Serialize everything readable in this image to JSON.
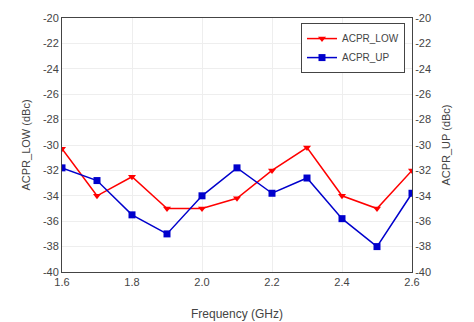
{
  "chart_data": {
    "type": "line",
    "x": [
      1.6,
      1.7,
      1.8,
      1.9,
      2.0,
      2.1,
      2.2,
      2.3,
      2.4,
      2.5,
      2.6
    ],
    "series": [
      {
        "name": "ACPR_LOW",
        "color": "#ff0000",
        "marker": "triangle-down",
        "line_style": "solid",
        "values": [
          -30.3,
          -34.0,
          -32.5,
          -35.0,
          -35.0,
          -34.2,
          -32.0,
          -30.2,
          -34.0,
          -35.0,
          -32.0
        ]
      },
      {
        "name": "ACPR_UP",
        "color": "#0000cc",
        "marker": "square",
        "line_style": "solid",
        "axis": "y2",
        "values": [
          -31.8,
          -32.8,
          -35.5,
          -37.0,
          -34.0,
          -31.8,
          -33.8,
          -32.6,
          -35.8,
          -38.0,
          -33.8
        ]
      }
    ],
    "x_label": "Frequency (GHz)",
    "y_label": "ACPR_LOW (dBc)",
    "y2_label": "ACPR_UP (dBc)",
    "xlim": [
      1.6,
      2.6
    ],
    "xticks": [
      1.6,
      1.8,
      {
        "value": 2.0,
        "label": "2.0"
      },
      2.2,
      2.4,
      2.6
    ],
    "ylim": [
      -40,
      -20
    ],
    "yticks": [
      -40,
      -38,
      -36,
      -34,
      -32,
      -30,
      -28,
      -26,
      -24,
      -22,
      -20
    ],
    "y2lim": [
      -40,
      -20
    ],
    "y2ticks": [
      -40,
      -38,
      -36,
      -34,
      -32,
      -30,
      -28,
      -26,
      -24,
      -22,
      -20
    ],
    "grid": true,
    "legend": "upper right"
  }
}
